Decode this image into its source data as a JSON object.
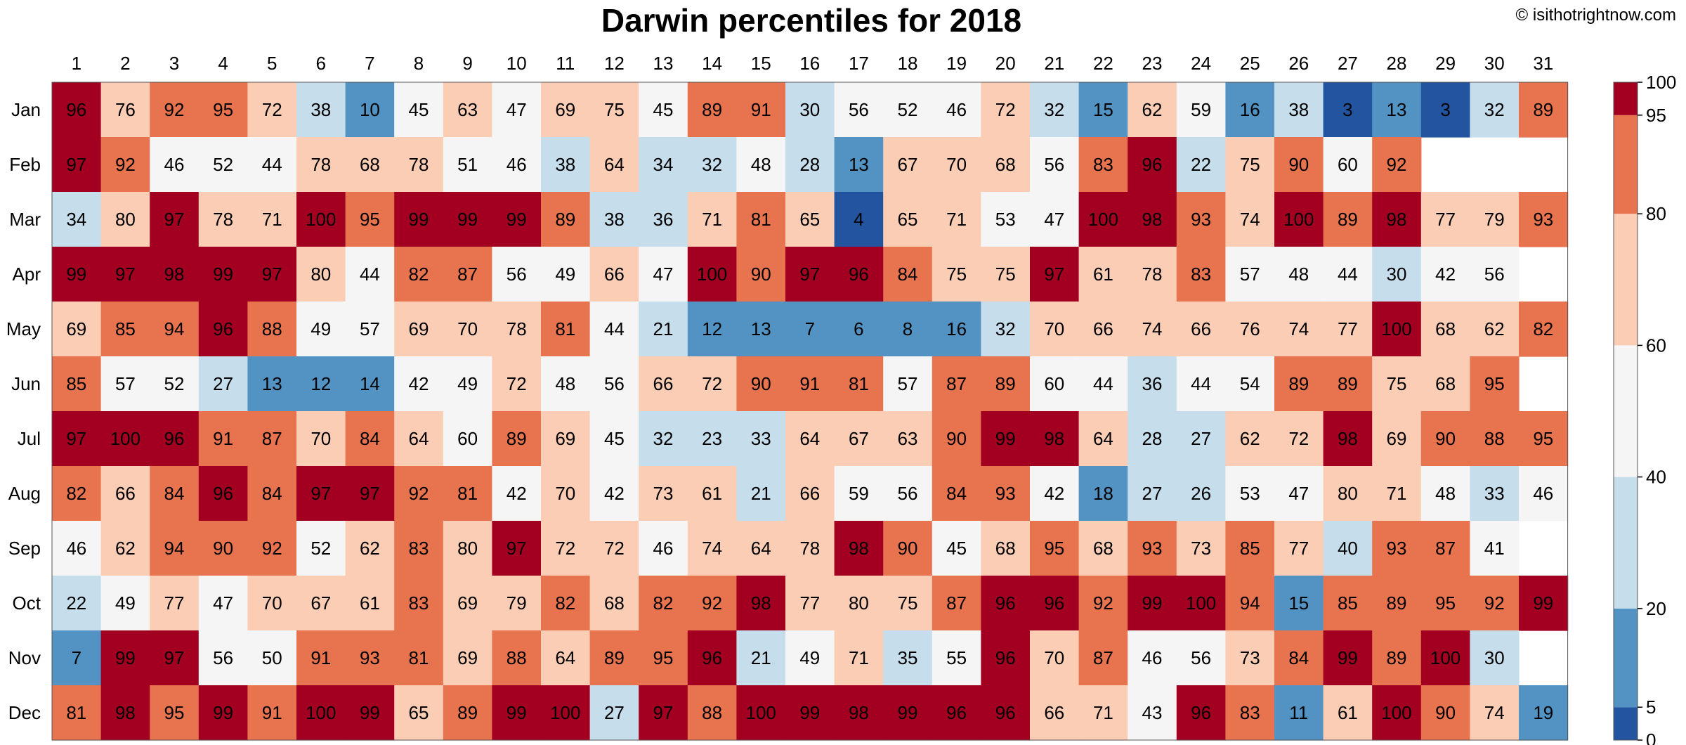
{
  "title": "Darwin percentiles for 2018",
  "copyright": "© isithotrightnow.com",
  "chart_data": {
    "type": "heatmap",
    "title": "Darwin percentiles for 2018",
    "columns": [
      "1",
      "2",
      "3",
      "4",
      "5",
      "6",
      "7",
      "8",
      "9",
      "10",
      "11",
      "12",
      "13",
      "14",
      "15",
      "16",
      "17",
      "18",
      "19",
      "20",
      "21",
      "22",
      "23",
      "24",
      "25",
      "26",
      "27",
      "28",
      "29",
      "30",
      "31"
    ],
    "rows": [
      "Jan",
      "Feb",
      "Mar",
      "Apr",
      "May",
      "Jun",
      "Jul",
      "Aug",
      "Sep",
      "Oct",
      "Nov",
      "Dec"
    ],
    "values": [
      [
        96,
        76,
        92,
        95,
        72,
        38,
        10,
        45,
        63,
        47,
        69,
        75,
        45,
        89,
        91,
        30,
        56,
        52,
        46,
        72,
        32,
        15,
        62,
        59,
        16,
        38,
        3,
        13,
        3,
        32,
        89
      ],
      [
        97,
        92,
        46,
        52,
        44,
        78,
        68,
        78,
        51,
        46,
        38,
        64,
        34,
        32,
        48,
        28,
        13,
        67,
        70,
        68,
        56,
        83,
        96,
        22,
        75,
        90,
        60,
        92,
        null,
        null,
        null
      ],
      [
        34,
        80,
        97,
        78,
        71,
        100,
        95,
        99,
        99,
        99,
        89,
        38,
        36,
        71,
        81,
        65,
        4,
        65,
        71,
        53,
        47,
        100,
        98,
        93,
        74,
        100,
        89,
        98,
        77,
        79,
        93
      ],
      [
        99,
        97,
        98,
        99,
        97,
        80,
        44,
        82,
        87,
        56,
        49,
        66,
        47,
        100,
        90,
        97,
        96,
        84,
        75,
        75,
        97,
        61,
        78,
        83,
        57,
        48,
        44,
        30,
        42,
        56,
        null
      ],
      [
        69,
        85,
        94,
        96,
        88,
        49,
        57,
        69,
        70,
        78,
        81,
        44,
        21,
        12,
        13,
        7,
        6,
        8,
        16,
        32,
        70,
        66,
        74,
        66,
        76,
        74,
        77,
        100,
        68,
        62,
        82
      ],
      [
        85,
        57,
        52,
        27,
        13,
        12,
        14,
        42,
        49,
        72,
        48,
        56,
        66,
        72,
        90,
        91,
        81,
        57,
        87,
        89,
        60,
        44,
        36,
        44,
        54,
        89,
        89,
        75,
        68,
        95,
        null
      ],
      [
        97,
        100,
        96,
        91,
        87,
        70,
        84,
        64,
        60,
        89,
        69,
        45,
        32,
        23,
        33,
        64,
        67,
        63,
        90,
        99,
        98,
        64,
        28,
        27,
        62,
        72,
        98,
        69,
        90,
        88,
        95
      ],
      [
        82,
        66,
        84,
        96,
        84,
        97,
        97,
        92,
        81,
        42,
        70,
        42,
        73,
        61,
        21,
        66,
        59,
        56,
        84,
        93,
        42,
        18,
        27,
        26,
        53,
        47,
        80,
        71,
        48,
        33,
        46
      ],
      [
        46,
        62,
        94,
        90,
        92,
        52,
        62,
        83,
        80,
        97,
        72,
        72,
        46,
        74,
        64,
        78,
        98,
        90,
        45,
        68,
        95,
        68,
        93,
        73,
        85,
        77,
        40,
        93,
        87,
        41,
        null
      ],
      [
        22,
        49,
        77,
        47,
        70,
        67,
        61,
        83,
        69,
        79,
        82,
        68,
        82,
        92,
        98,
        77,
        80,
        75,
        87,
        96,
        96,
        92,
        99,
        100,
        94,
        15,
        85,
        89,
        95,
        92,
        99
      ],
      [
        7,
        99,
        97,
        56,
        50,
        91,
        93,
        81,
        69,
        88,
        64,
        89,
        95,
        96,
        21,
        49,
        71,
        35,
        55,
        96,
        70,
        87,
        46,
        56,
        73,
        84,
        99,
        89,
        100,
        30,
        null
      ],
      [
        81,
        98,
        95,
        99,
        91,
        100,
        99,
        65,
        89,
        99,
        100,
        27,
        97,
        88,
        100,
        99,
        98,
        99,
        96,
        96,
        66,
        71,
        43,
        96,
        83,
        11,
        61,
        100,
        90,
        74,
        19
      ]
    ],
    "colorbar": {
      "ticks": [
        "0",
        "5",
        "20",
        "40",
        "60",
        "80",
        "95",
        "100"
      ],
      "bins": [
        {
          "min": 0,
          "max": 5,
          "color": "#2354a0"
        },
        {
          "min": 5,
          "max": 20,
          "color": "#5293c3"
        },
        {
          "min": 20,
          "max": 40,
          "color": "#c6ddec"
        },
        {
          "min": 40,
          "max": 60,
          "color": "#f5f5f5"
        },
        {
          "min": 60,
          "max": 80,
          "color": "#fbcdb4"
        },
        {
          "min": 80,
          "max": 95,
          "color": "#e7744f"
        },
        {
          "min": 95,
          "max": 100,
          "color": "#a30021"
        }
      ]
    }
  }
}
